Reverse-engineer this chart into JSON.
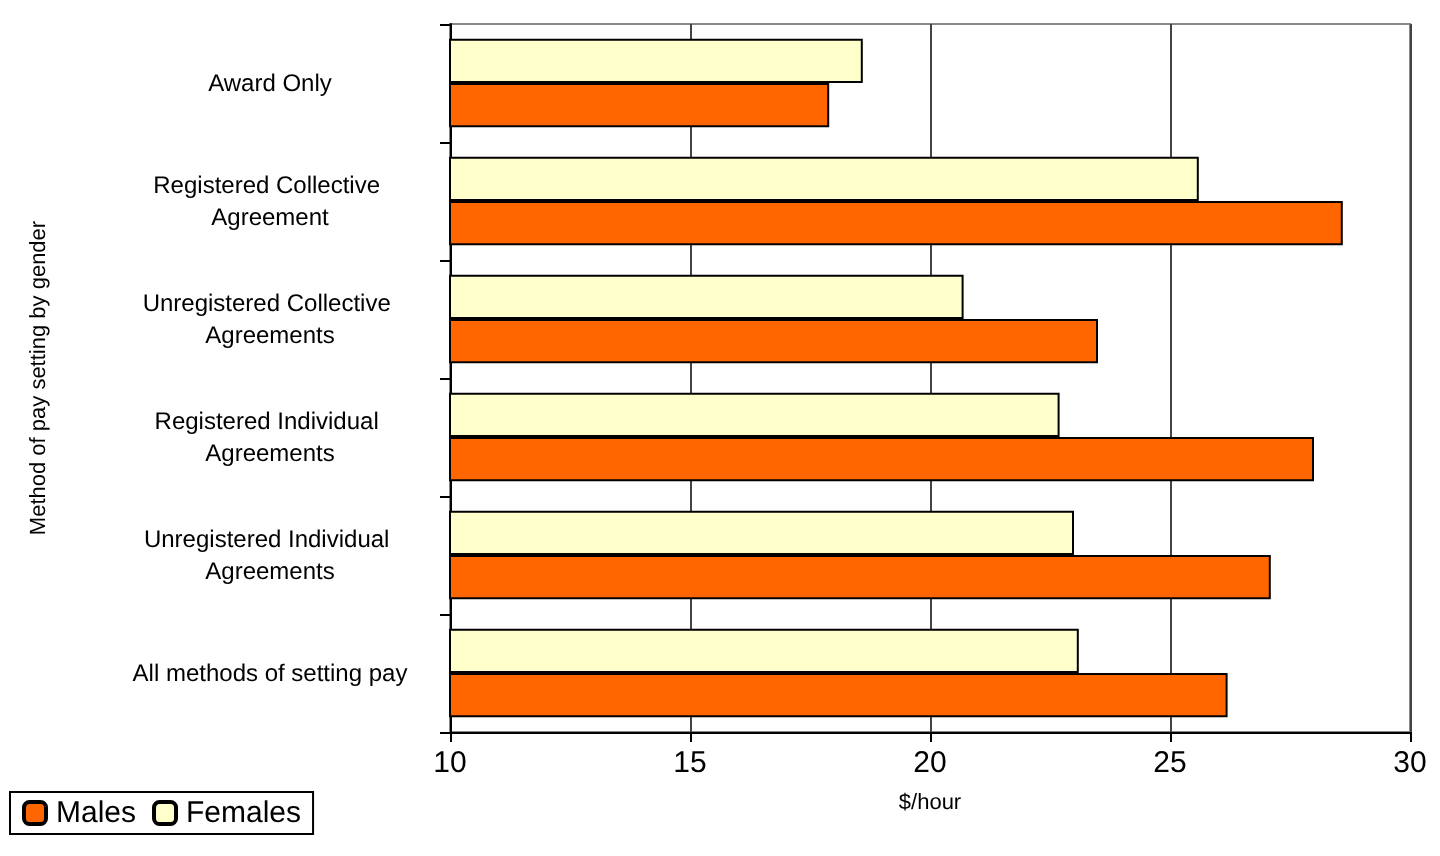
{
  "chart_data": {
    "type": "bar",
    "orientation": "horizontal",
    "ylabel": "Method of pay setting by gender",
    "xlabel": "$/hour",
    "categories": [
      "Award Only",
      "Registered Collective Agreement",
      "Unregistered Collective Agreements",
      "Registered Individual Agreements",
      "Unregistered Individual Agreements",
      "All methods of setting pay"
    ],
    "series": [
      {
        "name": "Males",
        "color": "#ff6600",
        "values": [
          17.9,
          28.6,
          23.5,
          28.0,
          27.1,
          26.2
        ]
      },
      {
        "name": "Females",
        "color": "#ffffcc",
        "values": [
          18.6,
          25.6,
          20.7,
          22.7,
          23.0,
          23.1
        ]
      }
    ],
    "xlim": [
      10,
      30
    ],
    "xticks": [
      10,
      15,
      20,
      25,
      30
    ],
    "grid": "x",
    "legend": "bottom left"
  }
}
